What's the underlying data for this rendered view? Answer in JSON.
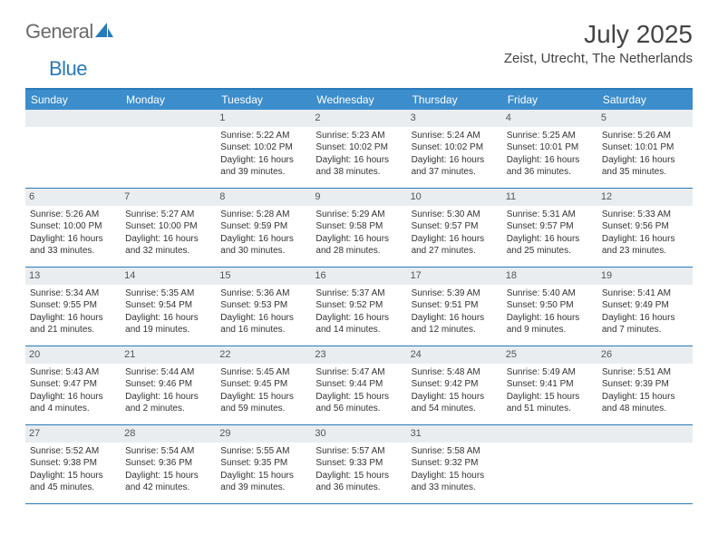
{
  "brand": {
    "name_a": "General",
    "name_b": "Blue"
  },
  "title": "July 2025",
  "location": "Zeist, Utrecht, The Netherlands",
  "colors": {
    "header_bar": "#3c8dcc",
    "rule": "#2a7ab9",
    "daynum_bg": "#e9edf0",
    "text": "#333333",
    "brand_grey": "#6b6b6b",
    "brand_blue": "#2a7ab9"
  },
  "day_names": [
    "Sunday",
    "Monday",
    "Tuesday",
    "Wednesday",
    "Thursday",
    "Friday",
    "Saturday"
  ],
  "weeks": [
    [
      {
        "n": "",
        "empty": true
      },
      {
        "n": "",
        "empty": true
      },
      {
        "n": "1",
        "sr": "5:22 AM",
        "ss": "10:02 PM",
        "dl": "16 hours and 39 minutes."
      },
      {
        "n": "2",
        "sr": "5:23 AM",
        "ss": "10:02 PM",
        "dl": "16 hours and 38 minutes."
      },
      {
        "n": "3",
        "sr": "5:24 AM",
        "ss": "10:02 PM",
        "dl": "16 hours and 37 minutes."
      },
      {
        "n": "4",
        "sr": "5:25 AM",
        "ss": "10:01 PM",
        "dl": "16 hours and 36 minutes."
      },
      {
        "n": "5",
        "sr": "5:26 AM",
        "ss": "10:01 PM",
        "dl": "16 hours and 35 minutes."
      }
    ],
    [
      {
        "n": "6",
        "sr": "5:26 AM",
        "ss": "10:00 PM",
        "dl": "16 hours and 33 minutes."
      },
      {
        "n": "7",
        "sr": "5:27 AM",
        "ss": "10:00 PM",
        "dl": "16 hours and 32 minutes."
      },
      {
        "n": "8",
        "sr": "5:28 AM",
        "ss": "9:59 PM",
        "dl": "16 hours and 30 minutes."
      },
      {
        "n": "9",
        "sr": "5:29 AM",
        "ss": "9:58 PM",
        "dl": "16 hours and 28 minutes."
      },
      {
        "n": "10",
        "sr": "5:30 AM",
        "ss": "9:57 PM",
        "dl": "16 hours and 27 minutes."
      },
      {
        "n": "11",
        "sr": "5:31 AM",
        "ss": "9:57 PM",
        "dl": "16 hours and 25 minutes."
      },
      {
        "n": "12",
        "sr": "5:33 AM",
        "ss": "9:56 PM",
        "dl": "16 hours and 23 minutes."
      }
    ],
    [
      {
        "n": "13",
        "sr": "5:34 AM",
        "ss": "9:55 PM",
        "dl": "16 hours and 21 minutes."
      },
      {
        "n": "14",
        "sr": "5:35 AM",
        "ss": "9:54 PM",
        "dl": "16 hours and 19 minutes."
      },
      {
        "n": "15",
        "sr": "5:36 AM",
        "ss": "9:53 PM",
        "dl": "16 hours and 16 minutes."
      },
      {
        "n": "16",
        "sr": "5:37 AM",
        "ss": "9:52 PM",
        "dl": "16 hours and 14 minutes."
      },
      {
        "n": "17",
        "sr": "5:39 AM",
        "ss": "9:51 PM",
        "dl": "16 hours and 12 minutes."
      },
      {
        "n": "18",
        "sr": "5:40 AM",
        "ss": "9:50 PM",
        "dl": "16 hours and 9 minutes."
      },
      {
        "n": "19",
        "sr": "5:41 AM",
        "ss": "9:49 PM",
        "dl": "16 hours and 7 minutes."
      }
    ],
    [
      {
        "n": "20",
        "sr": "5:43 AM",
        "ss": "9:47 PM",
        "dl": "16 hours and 4 minutes."
      },
      {
        "n": "21",
        "sr": "5:44 AM",
        "ss": "9:46 PM",
        "dl": "16 hours and 2 minutes."
      },
      {
        "n": "22",
        "sr": "5:45 AM",
        "ss": "9:45 PM",
        "dl": "15 hours and 59 minutes."
      },
      {
        "n": "23",
        "sr": "5:47 AM",
        "ss": "9:44 PM",
        "dl": "15 hours and 56 minutes."
      },
      {
        "n": "24",
        "sr": "5:48 AM",
        "ss": "9:42 PM",
        "dl": "15 hours and 54 minutes."
      },
      {
        "n": "25",
        "sr": "5:49 AM",
        "ss": "9:41 PM",
        "dl": "15 hours and 51 minutes."
      },
      {
        "n": "26",
        "sr": "5:51 AM",
        "ss": "9:39 PM",
        "dl": "15 hours and 48 minutes."
      }
    ],
    [
      {
        "n": "27",
        "sr": "5:52 AM",
        "ss": "9:38 PM",
        "dl": "15 hours and 45 minutes."
      },
      {
        "n": "28",
        "sr": "5:54 AM",
        "ss": "9:36 PM",
        "dl": "15 hours and 42 minutes."
      },
      {
        "n": "29",
        "sr": "5:55 AM",
        "ss": "9:35 PM",
        "dl": "15 hours and 39 minutes."
      },
      {
        "n": "30",
        "sr": "5:57 AM",
        "ss": "9:33 PM",
        "dl": "15 hours and 36 minutes."
      },
      {
        "n": "31",
        "sr": "5:58 AM",
        "ss": "9:32 PM",
        "dl": "15 hours and 33 minutes."
      },
      {
        "n": "",
        "empty": true
      },
      {
        "n": "",
        "empty": true
      }
    ]
  ],
  "labels": {
    "sunrise": "Sunrise: ",
    "sunset": "Sunset: ",
    "daylight": "Daylight: "
  }
}
